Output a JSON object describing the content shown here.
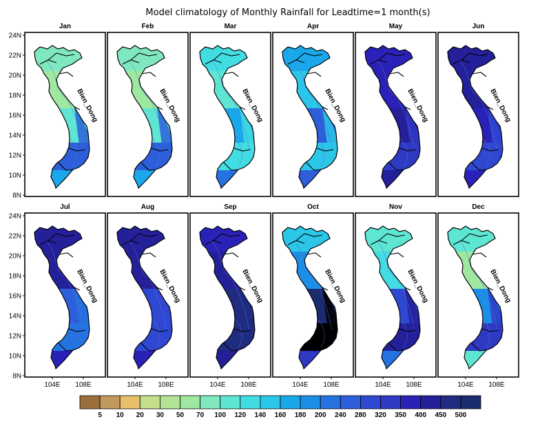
{
  "title": "Model climatology of Monthly Rainfall for Leadtime=1 month(s)",
  "sea_label": "Bien_Dong",
  "lat_ticks": [
    "24N",
    "22N",
    "20N",
    "18N",
    "16N",
    "14N",
    "12N",
    "10N",
    "8N"
  ],
  "lon_ticks": [
    "104E",
    "108E"
  ],
  "months": [
    {
      "name": "Jan",
      "palette": [
        6,
        5,
        7,
        13,
        10
      ]
    },
    {
      "name": "Feb",
      "palette": [
        6,
        5,
        7,
        13,
        10
      ]
    },
    {
      "name": "Mar",
      "palette": [
        8,
        7,
        10,
        8,
        12
      ]
    },
    {
      "name": "Apr",
      "palette": [
        10,
        9,
        13,
        9,
        13
      ]
    },
    {
      "name": "May",
      "palette": [
        16,
        16,
        17,
        15,
        17
      ]
    },
    {
      "name": "Jun",
      "palette": [
        17,
        17,
        16,
        14,
        16
      ]
    },
    {
      "name": "Jul",
      "palette": [
        17,
        17,
        13,
        12,
        16
      ]
    },
    {
      "name": "Aug",
      "palette": [
        17,
        17,
        14,
        14,
        16
      ]
    },
    {
      "name": "Sep",
      "palette": [
        16,
        17,
        18,
        18,
        17
      ]
    },
    {
      "name": "Oct",
      "palette": [
        9,
        11,
        19,
        21,
        15
      ]
    },
    {
      "name": "Nov",
      "palette": [
        7,
        8,
        14,
        17,
        12
      ]
    },
    {
      "name": "Dec",
      "palette": [
        7,
        5,
        11,
        15,
        7
      ]
    }
  ],
  "colorbar": {
    "labels": [
      "5",
      "10",
      "20",
      "30",
      "50",
      "70",
      "100",
      "120",
      "140",
      "160",
      "180",
      "200",
      "240",
      "280",
      "320",
      "350",
      "400",
      "450",
      "500"
    ],
    "colors": [
      "#9a6f3c",
      "#c29a5e",
      "#e8c06a",
      "#c5e08a",
      "#b3e495",
      "#9fe8a0",
      "#7fe8c0",
      "#5ee6d2",
      "#42dde3",
      "#2cc6e8",
      "#1ba8ea",
      "#1d8ee6",
      "#2473e0",
      "#2c5fd9",
      "#2f48d2",
      "#2f3ac4",
      "#2a22b8",
      "#24209a",
      "#1f2c80",
      "#1a2b6e"
    ]
  }
}
